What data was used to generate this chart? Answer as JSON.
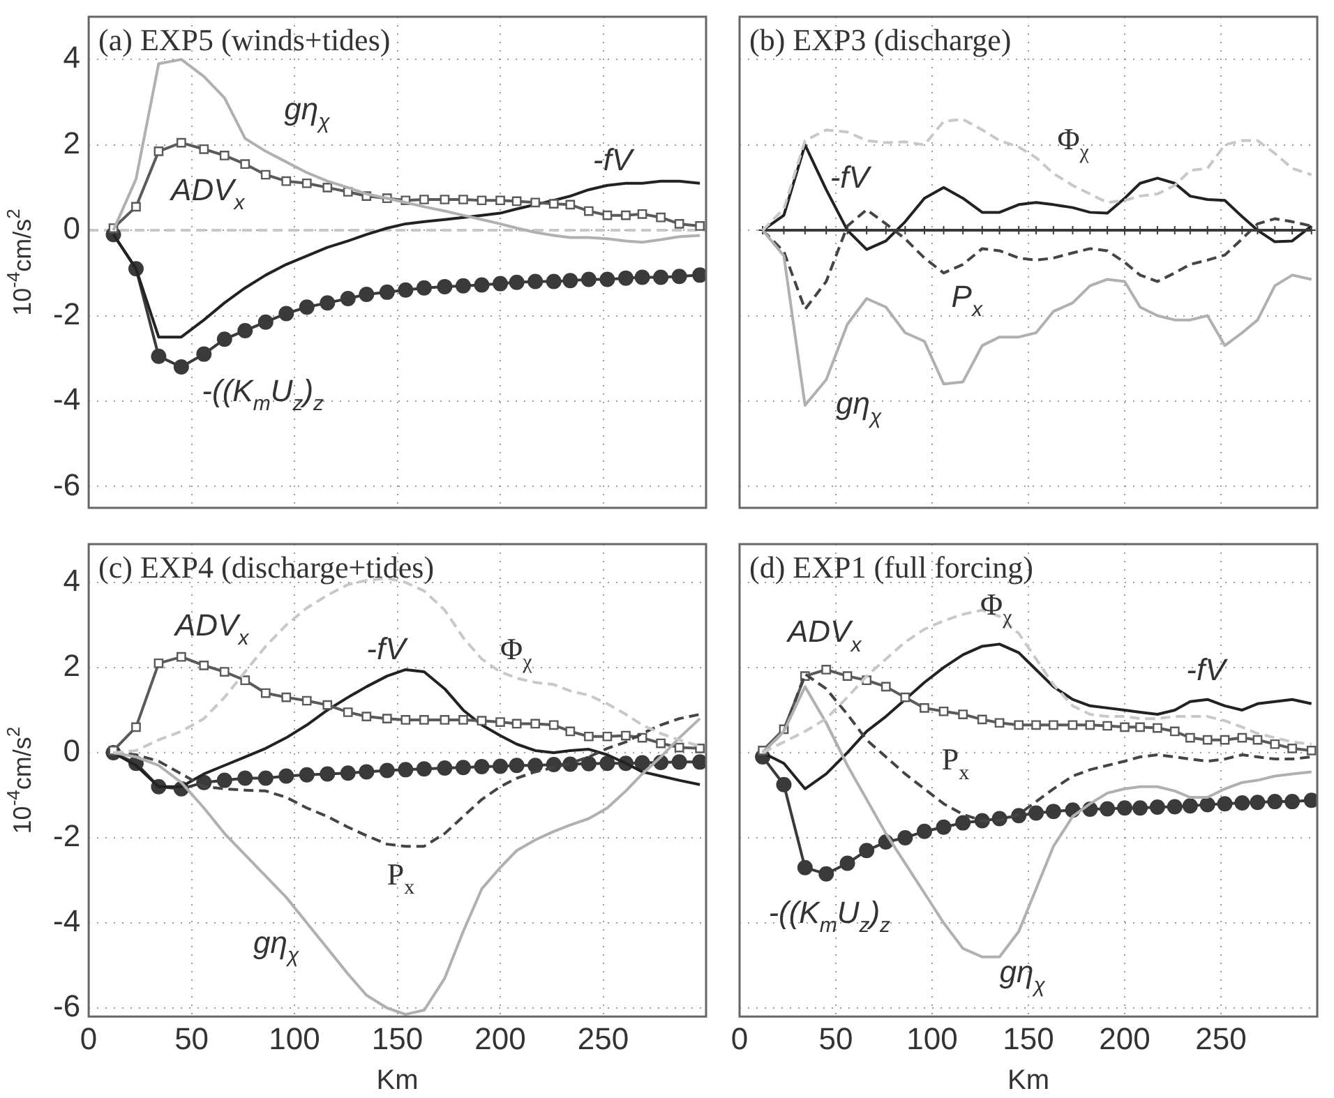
{
  "chart_data": [
    {
      "type": "line",
      "title": "(a) EXP5 (winds+tides)",
      "ylabel": "10$^{-4}$cm/s$^{2}$",
      "legend": false,
      "grid": true,
      "tick_labels": "y",
      "x": [
        12,
        23,
        34,
        45,
        56,
        66,
        76,
        86,
        96,
        106,
        116,
        126,
        135,
        145,
        154,
        163,
        173,
        182,
        191,
        200,
        208,
        217,
        226,
        234,
        243,
        252,
        261,
        269,
        278,
        287,
        297
      ],
      "xlim": [
        0,
        300
      ],
      "ylim": [
        -6.5,
        5
      ],
      "xticks": [
        0,
        50,
        100,
        150,
        200,
        250
      ],
      "yticks": [
        -6,
        -4,
        -2,
        0,
        2,
        4
      ],
      "ref_lines": [
        {
          "axis": "y",
          "value": 0,
          "color": "#c8c8c8",
          "line_style": "dashed"
        }
      ],
      "series": [
        {
          "name": "gη$_{χ}$",
          "color": "#b0b0b0",
          "line_style": "solid",
          "marker": "none",
          "values": [
            0,
            1.2,
            3.9,
            4.0,
            3.6,
            3.1,
            2.15,
            1.85,
            1.6,
            1.35,
            1.15,
            1.0,
            0.85,
            0.75,
            0.65,
            0.55,
            0.45,
            0.35,
            0.25,
            0.15,
            0.05,
            -0.05,
            -0.12,
            -0.17,
            -0.17,
            -0.2,
            -0.25,
            -0.28,
            -0.22,
            -0.15,
            -0.12
          ]
        },
        {
          "name": "ADV$_{x}$",
          "color": "#5a5a5a",
          "line_style": "solid",
          "marker": "square",
          "values": [
            0.05,
            0.55,
            1.85,
            2.05,
            1.9,
            1.75,
            1.55,
            1.3,
            1.15,
            1.1,
            1.0,
            0.9,
            0.8,
            0.75,
            0.7,
            0.72,
            0.72,
            0.72,
            0.7,
            0.7,
            0.68,
            0.65,
            0.62,
            0.6,
            0.45,
            0.35,
            0.35,
            0.38,
            0.3,
            0.15,
            0.1
          ]
        },
        {
          "name": "-fV",
          "color": "#222222",
          "line_style": "solid",
          "marker": "none",
          "values": [
            -0.1,
            -0.9,
            -2.5,
            -2.5,
            -2.1,
            -1.7,
            -1.35,
            -1.05,
            -0.8,
            -0.6,
            -0.4,
            -0.25,
            -0.1,
            0.05,
            0.15,
            0.2,
            0.25,
            0.3,
            0.35,
            0.4,
            0.5,
            0.6,
            0.7,
            0.8,
            0.95,
            1.05,
            1.1,
            1.1,
            1.15,
            1.15,
            1.1
          ]
        },
        {
          "name": "-((K$_{m}$U$_{z}$)$_{z}$",
          "color": "#3a3a3a",
          "line_style": "solid",
          "marker": "circle",
          "values": [
            -0.1,
            -0.9,
            -2.95,
            -3.2,
            -2.9,
            -2.55,
            -2.35,
            -2.15,
            -1.95,
            -1.8,
            -1.7,
            -1.6,
            -1.5,
            -1.45,
            -1.4,
            -1.35,
            -1.32,
            -1.3,
            -1.28,
            -1.25,
            -1.22,
            -1.2,
            -1.2,
            -1.18,
            -1.15,
            -1.15,
            -1.12,
            -1.1,
            -1.1,
            -1.08,
            -1.05
          ]
        }
      ]
    },
    {
      "type": "line",
      "title": "(b) EXP3 (discharge)",
      "legend": false,
      "grid": true,
      "tick_labels": false,
      "x": [
        12,
        23,
        34,
        45,
        56,
        66,
        76,
        86,
        96,
        106,
        116,
        126,
        135,
        145,
        154,
        163,
        173,
        182,
        191,
        200,
        208,
        217,
        226,
        234,
        243,
        252,
        261,
        269,
        278,
        287,
        297
      ],
      "xlim": [
        0,
        300
      ],
      "ylim": [
        -6.5,
        5
      ],
      "xticks": [
        0,
        50,
        100,
        150,
        200,
        250
      ],
      "yticks": [
        -6,
        -4,
        -2,
        0,
        2,
        4
      ],
      "series": [
        {
          "name": "Φ$_{χ}$",
          "color": "#c8c8c8",
          "line_style": "dashed",
          "marker": "none",
          "values": [
            0,
            0.5,
            2.1,
            2.35,
            2.3,
            2.1,
            2.05,
            2.07,
            2.0,
            2.55,
            2.6,
            2.35,
            2.1,
            1.95,
            1.7,
            1.33,
            1.05,
            0.85,
            0.65,
            0.7,
            0.8,
            0.85,
            1.05,
            1.4,
            1.45,
            2.0,
            2.1,
            2.1,
            1.8,
            1.45,
            1.3
          ]
        },
        {
          "name": "gη$_{χ}$",
          "color": "#b0b0b0",
          "line_style": "solid",
          "marker": "none",
          "values": [
            0,
            -0.6,
            -4.1,
            -3.5,
            -2.2,
            -1.6,
            -1.8,
            -2.4,
            -2.6,
            -3.6,
            -3.55,
            -2.7,
            -2.5,
            -2.5,
            -2.4,
            -1.9,
            -1.7,
            -1.3,
            -1.15,
            -1.2,
            -1.8,
            -2.0,
            -2.1,
            -2.1,
            -2.0,
            -2.7,
            -2.4,
            -2.1,
            -1.3,
            -1.05,
            -1.15
          ]
        },
        {
          "color": "#3a3a3a",
          "line_style": "solid",
          "marker": "cross",
          "values": [
            0,
            0,
            0,
            0,
            0,
            0,
            0,
            0,
            0,
            0,
            0,
            0,
            0,
            0,
            0,
            0,
            0,
            0,
            0,
            0,
            0,
            0,
            0,
            0,
            0,
            0,
            0,
            0,
            0,
            0,
            0
          ]
        },
        {
          "name": "P$_{x}$",
          "color": "#444444",
          "line_style": "dashed",
          "marker": "none",
          "values": [
            0,
            -0.5,
            -1.85,
            -1.2,
            0.1,
            0.48,
            0.15,
            -0.2,
            -0.65,
            -1.0,
            -0.8,
            -0.43,
            -0.48,
            -0.65,
            -0.7,
            -0.65,
            -0.53,
            -0.43,
            -0.48,
            -0.75,
            -1.05,
            -1.2,
            -1.0,
            -0.8,
            -0.7,
            -0.58,
            -0.2,
            0.15,
            0.27,
            0.2,
            0.1
          ]
        },
        {
          "name": "-fV",
          "color": "#222222",
          "line_style": "solid",
          "marker": "none",
          "values": [
            0,
            0.35,
            2.0,
            0.95,
            0,
            -0.45,
            -0.25,
            0.2,
            0.75,
            1.0,
            0.75,
            0.42,
            0.42,
            0.6,
            0.65,
            0.6,
            0.53,
            0.42,
            0.4,
            0.75,
            1.1,
            1.22,
            1.1,
            0.8,
            0.72,
            0.7,
            0.32,
            0,
            -0.27,
            -0.25,
            0.1
          ]
        }
      ]
    },
    {
      "type": "line",
      "title": "(c) EXP4 (discharge+tides)",
      "ylabel": "10$^{-4}$cm/s$^{2}$",
      "xlabel": "Km",
      "legend": false,
      "grid": true,
      "x": [
        12,
        23,
        34,
        45,
        56,
        66,
        76,
        86,
        96,
        106,
        116,
        126,
        135,
        145,
        154,
        163,
        173,
        182,
        191,
        200,
        208,
        217,
        226,
        234,
        243,
        252,
        261,
        269,
        278,
        287,
        297
      ],
      "xlim": [
        0,
        300
      ],
      "ylim": [
        -6.2,
        4.9
      ],
      "xticks": [
        0,
        50,
        100,
        150,
        200,
        250
      ],
      "yticks": [
        -6,
        -4,
        -2,
        0,
        2,
        4
      ],
      "series": [
        {
          "name": "Φ$_{χ}$",
          "color": "#c8c8c8",
          "line_style": "dashed",
          "marker": "none",
          "values": [
            0,
            0.05,
            0.3,
            0.5,
            0.8,
            1.3,
            1.9,
            2.5,
            3.0,
            3.4,
            3.7,
            3.95,
            4.05,
            4.1,
            4.0,
            3.8,
            3.35,
            2.7,
            2.2,
            1.9,
            1.75,
            1.65,
            1.6,
            1.45,
            1.35,
            1.15,
            0.9,
            0.65,
            0.45,
            0.3,
            0.15
          ]
        },
        {
          "name": "gη$_{χ}$",
          "color": "#b0b0b0",
          "line_style": "solid",
          "marker": "none",
          "values": [
            0,
            -0.1,
            -0.3,
            -0.7,
            -1.3,
            -1.9,
            -2.4,
            -2.9,
            -3.4,
            -4.0,
            -4.6,
            -5.2,
            -5.7,
            -6.0,
            -6.15,
            -6.05,
            -5.3,
            -4.2,
            -3.2,
            -2.7,
            -2.3,
            -2.05,
            -1.85,
            -1.7,
            -1.55,
            -1.3,
            -0.9,
            -0.5,
            -0.1,
            0.35,
            0.8
          ]
        },
        {
          "name": "P$_{x}$",
          "color": "#444444",
          "line_style": "dashed",
          "marker": "none",
          "values": [
            0,
            -0.05,
            -0.2,
            -0.5,
            -0.8,
            -0.85,
            -0.88,
            -0.9,
            -1.05,
            -1.3,
            -1.5,
            -1.75,
            -1.95,
            -2.15,
            -2.2,
            -2.2,
            -1.9,
            -1.5,
            -1.1,
            -0.8,
            -0.6,
            -0.45,
            -0.35,
            -0.25,
            -0.1,
            0.1,
            0.25,
            0.45,
            0.65,
            0.8,
            0.9
          ]
        },
        {
          "name": "ADV$_{x}$",
          "color": "#5a5a5a",
          "line_style": "solid",
          "marker": "square",
          "values": [
            0.05,
            0.6,
            2.1,
            2.25,
            2.05,
            1.9,
            1.7,
            1.4,
            1.3,
            1.22,
            1.12,
            0.95,
            0.85,
            0.8,
            0.77,
            0.77,
            0.77,
            0.77,
            0.75,
            0.72,
            0.68,
            0.68,
            0.65,
            0.5,
            0.38,
            0.38,
            0.4,
            0.35,
            0.22,
            0.12,
            0.1
          ]
        },
        {
          "name": "-fV",
          "color": "#222222",
          "line_style": "solid",
          "marker": "none",
          "values": [
            0,
            -0.3,
            -0.8,
            -0.8,
            -0.5,
            -0.3,
            -0.1,
            0.1,
            0.35,
            0.65,
            1.0,
            1.3,
            1.55,
            1.8,
            1.95,
            1.9,
            1.5,
            1.0,
            0.65,
            0.4,
            0.2,
            0.05,
            0,
            0.05,
            0.08,
            -0.05,
            -0.25,
            -0.45,
            -0.55,
            -0.65,
            -0.75
          ]
        },
        {
          "color": "#3a3a3a",
          "line_style": "solid",
          "marker": "circle",
          "values": [
            0,
            -0.25,
            -0.8,
            -0.85,
            -0.7,
            -0.65,
            -0.6,
            -0.6,
            -0.55,
            -0.52,
            -0.5,
            -0.48,
            -0.45,
            -0.42,
            -0.4,
            -0.38,
            -0.36,
            -0.35,
            -0.33,
            -0.32,
            -0.3,
            -0.3,
            -0.28,
            -0.27,
            -0.26,
            -0.25,
            -0.25,
            -0.24,
            -0.23,
            -0.22,
            -0.22
          ]
        }
      ]
    },
    {
      "type": "line",
      "title": "(d) EXP1 (full forcing)",
      "xlabel": "Km",
      "legend": false,
      "grid": true,
      "tick_labels": "x",
      "x": [
        12,
        23,
        34,
        45,
        56,
        66,
        76,
        86,
        96,
        106,
        116,
        126,
        135,
        145,
        154,
        163,
        173,
        182,
        191,
        200,
        208,
        217,
        226,
        234,
        243,
        252,
        261,
        269,
        278,
        287,
        297
      ],
      "xlim": [
        0,
        300
      ],
      "ylim": [
        -6.2,
        4.9
      ],
      "xticks": [
        0,
        50,
        100,
        150,
        200,
        250
      ],
      "yticks": [
        -6,
        -4,
        -2,
        0,
        2,
        4
      ],
      "series": [
        {
          "name": "Φ$_{χ}$",
          "color": "#c8c8c8",
          "line_style": "dashed",
          "marker": "none",
          "values": [
            0,
            0.25,
            0.5,
            0.8,
            1.3,
            1.8,
            2.2,
            2.6,
            2.9,
            3.1,
            3.25,
            3.35,
            3.2,
            2.8,
            2.2,
            1.6,
            1.1,
            0.9,
            0.85,
            0.85,
            0.8,
            0.8,
            0.85,
            0.85,
            0.85,
            0.75,
            0.6,
            0.45,
            0.35,
            0.25,
            0.2
          ]
        },
        {
          "name": "gη$_{χ}$",
          "color": "#b0b0b0",
          "line_style": "solid",
          "marker": "none",
          "values": [
            0,
            0.5,
            1.55,
            0.7,
            -0.3,
            -1.1,
            -1.9,
            -2.6,
            -3.3,
            -4.0,
            -4.6,
            -4.8,
            -4.8,
            -4.2,
            -3.2,
            -2.2,
            -1.5,
            -1.2,
            -0.95,
            -0.85,
            -0.8,
            -0.8,
            -0.9,
            -1.05,
            -1.05,
            -0.85,
            -0.7,
            -0.65,
            -0.55,
            -0.5,
            -0.45
          ]
        },
        {
          "name": "P$_{x}$",
          "color": "#444444",
          "line_style": "dashed",
          "marker": "none",
          "values": [
            0,
            0.5,
            1.85,
            1.5,
            0.9,
            0.3,
            -0.1,
            -0.5,
            -0.85,
            -1.2,
            -1.45,
            -1.6,
            -1.6,
            -1.45,
            -1.15,
            -0.85,
            -0.55,
            -0.4,
            -0.3,
            -0.2,
            -0.1,
            -0.05,
            -0.1,
            -0.15,
            -0.2,
            -0.15,
            -0.05,
            -0.1,
            -0.15,
            -0.15,
            -0.1
          ]
        },
        {
          "name": "ADV$_{x}$",
          "color": "#5a5a5a",
          "line_style": "solid",
          "marker": "square",
          "values": [
            0.05,
            0.55,
            1.8,
            1.95,
            1.8,
            1.7,
            1.55,
            1.3,
            1.05,
            0.97,
            0.9,
            0.78,
            0.7,
            0.65,
            0.65,
            0.65,
            0.65,
            0.65,
            0.63,
            0.6,
            0.6,
            0.58,
            0.5,
            0.35,
            0.3,
            0.3,
            0.35,
            0.3,
            0.2,
            0.1,
            0.05
          ]
        },
        {
          "name": "-fV",
          "color": "#222222",
          "line_style": "solid",
          "marker": "none",
          "values": [
            0,
            -0.25,
            -0.85,
            -0.5,
            0,
            0.5,
            0.85,
            1.25,
            1.65,
            2.0,
            2.3,
            2.5,
            2.55,
            2.35,
            1.95,
            1.55,
            1.25,
            1.1,
            1.05,
            1.0,
            0.95,
            0.9,
            1.0,
            1.2,
            1.25,
            1.1,
            1.0,
            1.15,
            1.2,
            1.25,
            1.15
          ]
        },
        {
          "name": "-((K$_{m}$U$_{z}$)$_{z}$",
          "color": "#3a3a3a",
          "line_style": "solid",
          "marker": "circle",
          "values": [
            -0.1,
            -0.75,
            -2.7,
            -2.85,
            -2.6,
            -2.3,
            -2.1,
            -2.0,
            -1.85,
            -1.75,
            -1.65,
            -1.6,
            -1.55,
            -1.48,
            -1.42,
            -1.38,
            -1.35,
            -1.33,
            -1.32,
            -1.3,
            -1.3,
            -1.28,
            -1.27,
            -1.25,
            -1.22,
            -1.2,
            -1.18,
            -1.17,
            -1.15,
            -1.15,
            -1.12
          ]
        }
      ]
    }
  ]
}
